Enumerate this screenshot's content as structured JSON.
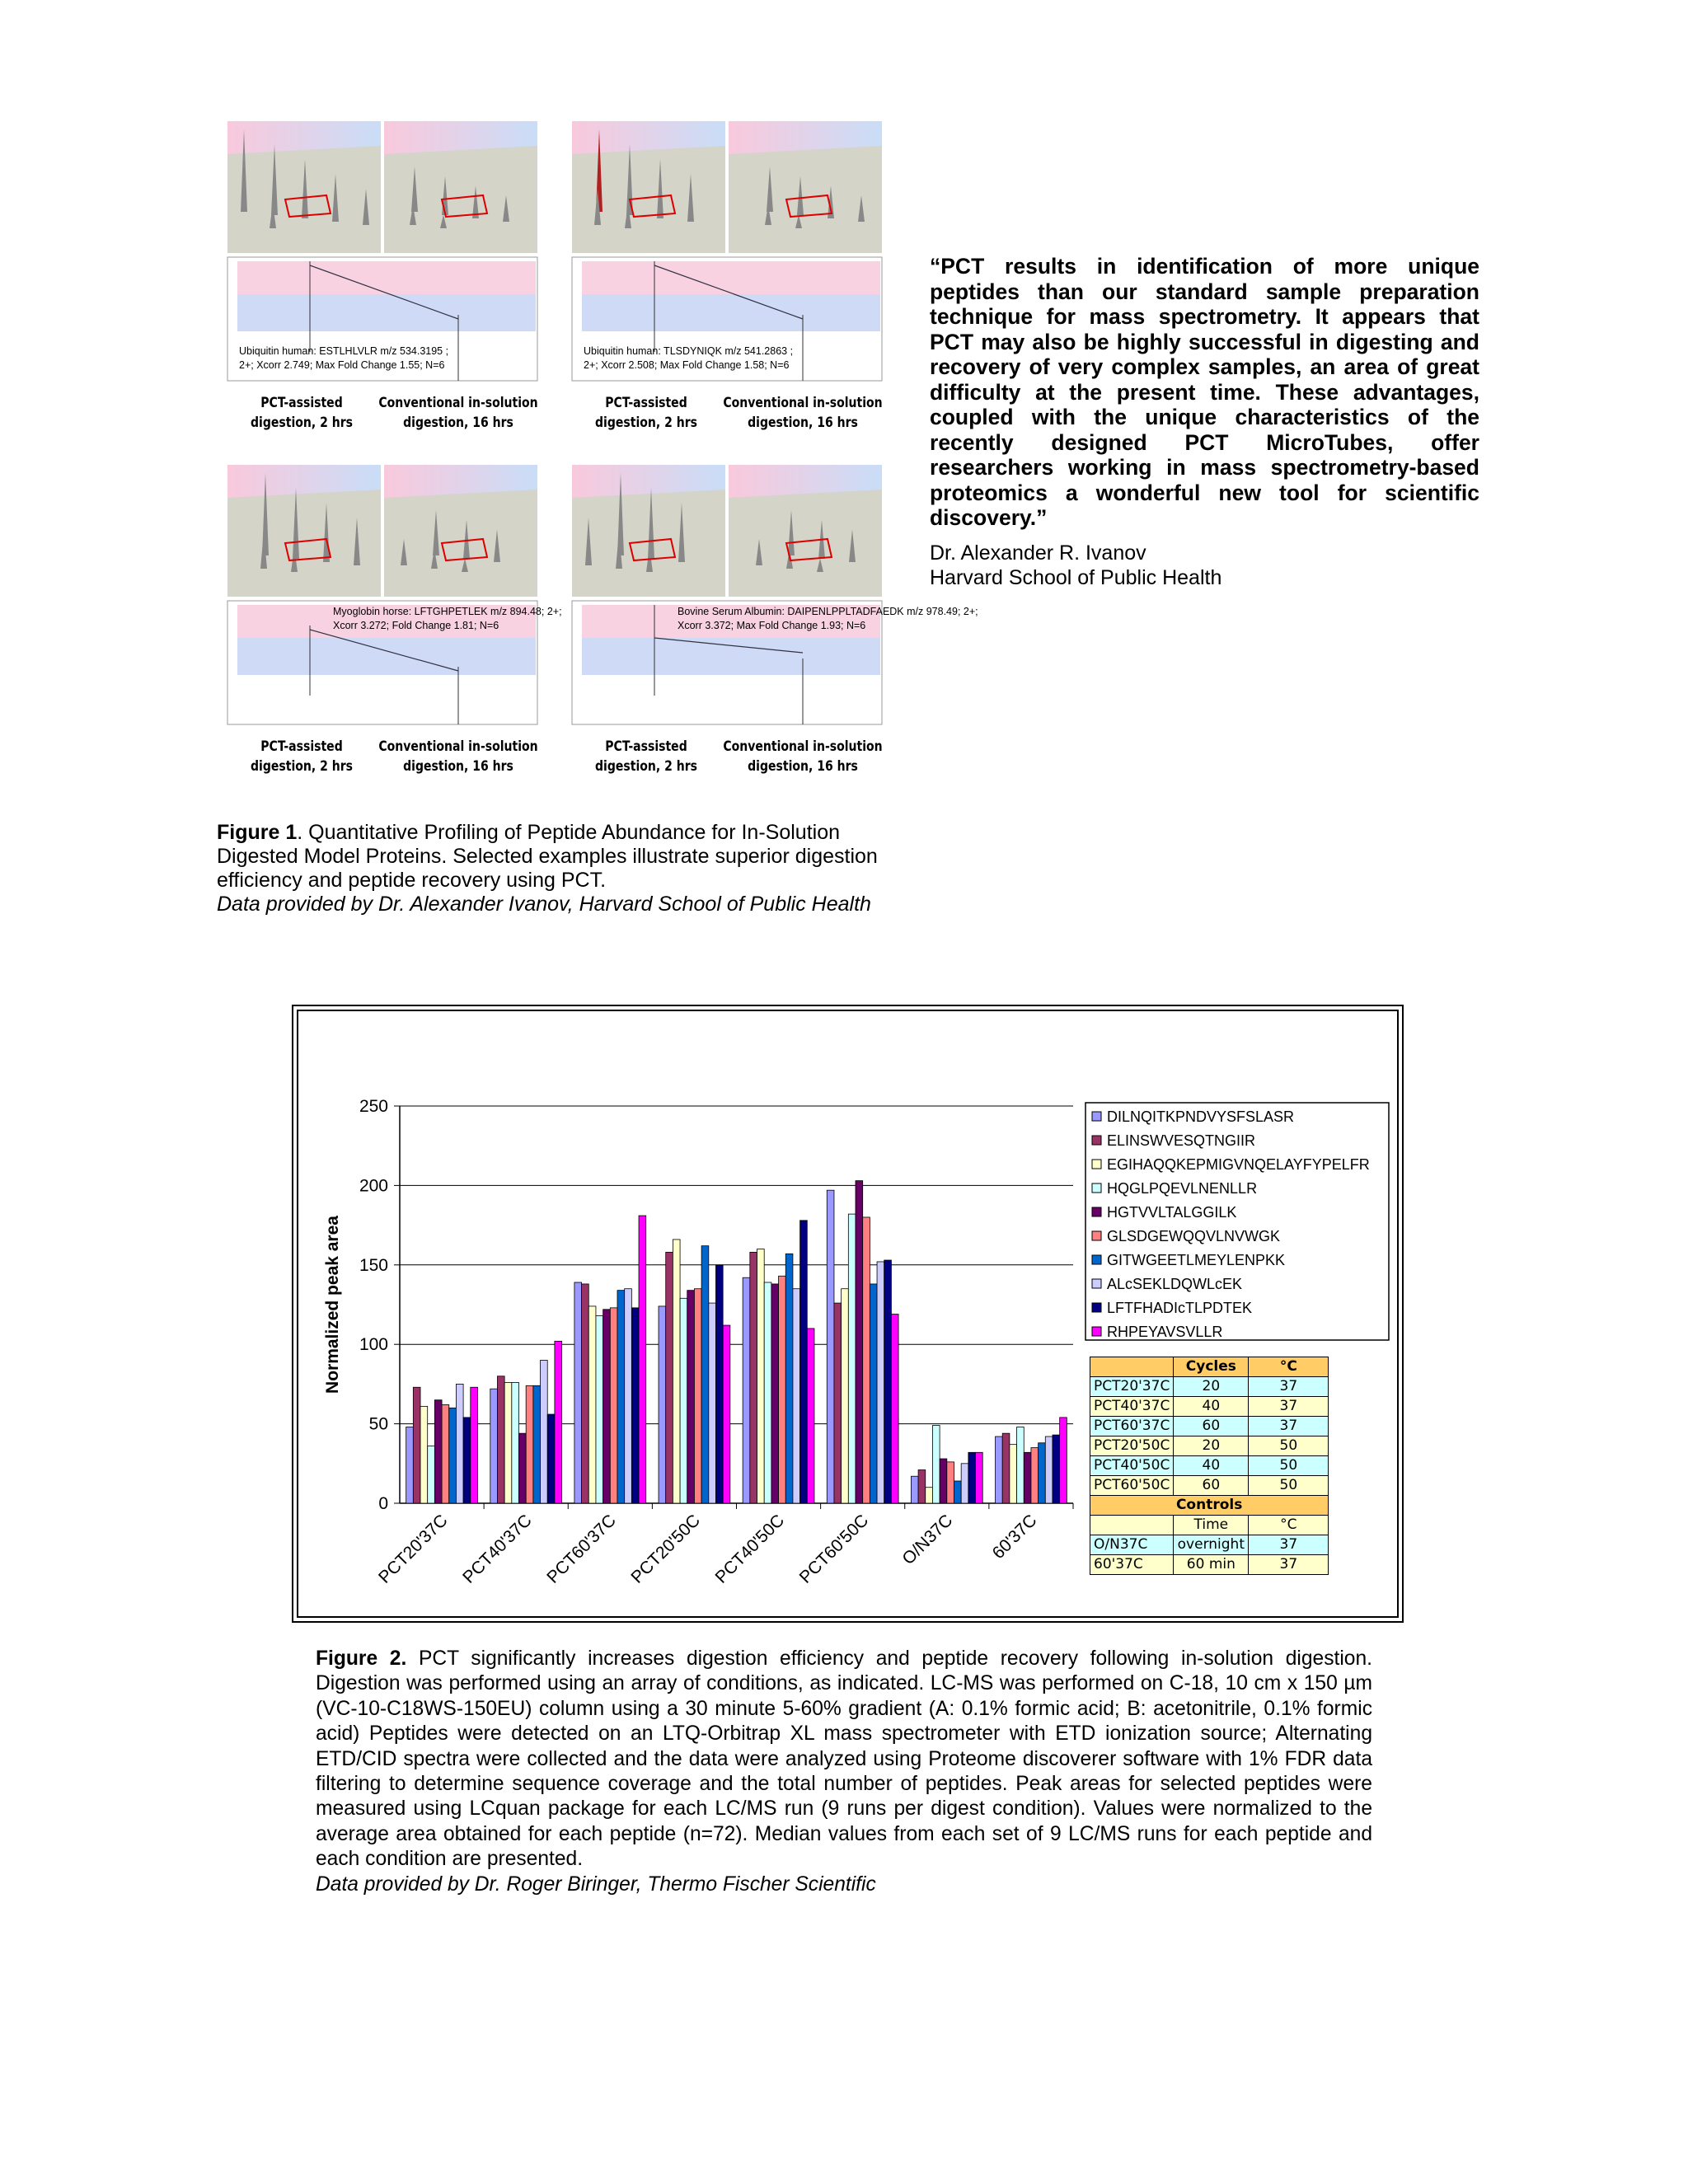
{
  "figure1": {
    "panels": [
      {
        "annotation": [
          "Ubiquitin human: ESTLHLVLR m/z 534.3195 ;",
          "2+; Xcorr 2.749; Max Fold Change 1.55; N=6"
        ],
        "left_label": [
          "PCT-assisted",
          "digestion, 2 hrs"
        ],
        "right_label": [
          "Conventional in-solution",
          "digestion, 16 hrs"
        ]
      },
      {
        "annotation": [
          "Ubiquitin human: TLSDYNIQK m/z 541.2863 ;",
          "2+; Xcorr 2.508; Max Fold Change 1.58; N=6"
        ],
        "left_label": [
          "PCT-assisted",
          "digestion, 2 hrs"
        ],
        "right_label": [
          "Conventional in-solution",
          "digestion, 16 hrs"
        ]
      },
      {
        "annotation": [
          "Myoglobin horse: LFTGHPETLEK m/z 894.48; 2+;",
          "Xcorr 3.272; Fold Change 1.81; N=6"
        ],
        "left_label": [
          "PCT-assisted",
          "digestion, 2 hrs"
        ],
        "right_label": [
          "Conventional in-solution",
          "digestion, 16 hrs"
        ]
      },
      {
        "annotation": [
          "Bovine Serum Albumin: DAIPENLPPLTADFAEDK m/z 978.49; 2+;",
          "Xcorr 3.372; Max Fold Change 1.93; N=6"
        ],
        "left_label": [
          "PCT-assisted",
          "digestion, 2 hrs"
        ],
        "right_label": [
          "Conventional in-solution",
          "digestion, 16 hrs"
        ]
      }
    ],
    "caption": {
      "label": "Figure 1",
      "text": ".  Quantitative Profiling of Peptide Abundance for In-Solution Digested Model Proteins.  Selected examples illustrate superior digestion efficiency and peptide recovery using PCT.",
      "credit": "Data provided by Dr. Alexander Ivanov, Harvard School of Public Health"
    }
  },
  "quote": {
    "text": "“PCT results in identification of more unique peptides than our standard sample preparation technique for mass spectrometry.  It appears that PCT may also be highly successful in digesting and recovery of very complex samples, an area of great difficulty at the present time.  These advantages, coupled with the unique characteristics of the recently designed PCT MicroTubes, offer researchers working in mass spectrometry-based proteomics a wonderful new tool for scientific discovery.”",
    "author": "Dr. Alexander R. Ivanov",
    "affiliation": "Harvard School of Public Health"
  },
  "chart_data": {
    "type": "bar",
    "y_label": "Normalized peak area",
    "categories": [
      "PCT20'37C",
      "PCT40'37C",
      "PCT60'37C",
      "PCT20'50C",
      "PCT40'50C",
      "PCT60'50C",
      "O/N37C",
      "60'37C"
    ],
    "ylim": [
      0,
      250
    ],
    "yticks": [
      0,
      50,
      100,
      150,
      200,
      250
    ],
    "grid": true,
    "legend": "right",
    "series": [
      {
        "name": "DILNQITKPNDVYSFSLASR",
        "color": "#9999ff",
        "values": [
          48,
          72,
          139,
          124,
          142,
          197,
          17,
          42
        ]
      },
      {
        "name": "ELINSWVESQTNGIIR",
        "color": "#993366",
        "values": [
          73,
          80,
          138,
          158,
          158,
          126,
          21,
          44
        ]
      },
      {
        "name": "EGIHAQQKEPMIGVNQELAYFYPELFR",
        "color": "#ffffcc",
        "values": [
          61,
          76,
          124,
          166,
          160,
          135,
          10,
          37
        ]
      },
      {
        "name": "HQGLPQEVLNENLLR",
        "color": "#ccffff",
        "values": [
          36,
          76,
          118,
          129,
          139,
          182,
          49,
          48
        ]
      },
      {
        "name": "HGTVVLTALGGILK",
        "color": "#660066",
        "values": [
          65,
          44,
          122,
          134,
          138,
          203,
          28,
          32
        ]
      },
      {
        "name": "GLSDGEWQQVLNVWGK",
        "color": "#ff8080",
        "values": [
          62,
          74,
          123,
          135,
          143,
          180,
          26,
          35
        ]
      },
      {
        "name": "GITWGEETLMEYLENPKK",
        "color": "#0066cc",
        "values": [
          60,
          74,
          134,
          162,
          157,
          138,
          14,
          38
        ]
      },
      {
        "name": "ALcSEKLDQWLcEK",
        "color": "#ccccff",
        "values": [
          75,
          90,
          135,
          126,
          135,
          152,
          25,
          42
        ]
      },
      {
        "name": "LFTFHADIcTLPDTEK",
        "color": "#000080",
        "values": [
          54,
          56,
          123,
          150,
          178,
          153,
          32,
          43
        ]
      },
      {
        "name": "RHPEYAVSVLLR",
        "color": "#ff00ff",
        "values": [
          73,
          102,
          181,
          112,
          110,
          119,
          32,
          54
        ]
      }
    ]
  },
  "conditions_table": {
    "header": [
      "Cycles",
      "°C"
    ],
    "rows": [
      [
        "PCT20'37C",
        20,
        37
      ],
      [
        "PCT40'37C",
        40,
        37
      ],
      [
        "PCT60'37C",
        60,
        37
      ],
      [
        "PCT20'50C",
        20,
        50
      ],
      [
        "PCT40'50C",
        40,
        50
      ],
      [
        "PCT60'50C",
        60,
        50
      ]
    ],
    "controls_title": "Controls",
    "controls_header": [
      "Time",
      "°C"
    ],
    "controls_rows": [
      [
        "O/N37C",
        "overnight",
        37
      ],
      [
        "60'37C",
        "60 min",
        37
      ]
    ]
  },
  "figure2": {
    "caption": {
      "label": "Figure 2.",
      "text": "PCT significantly increases digestion efficiency and peptide recovery following in-solution digestion. Digestion was performed using an array of conditions, as indicated. LC-MS was performed on C-18, 10 cm x 150 µm (VC-10-C18WS-150EU) column using a 30 minute 5-60% gradient (A: 0.1% formic acid; B: acetonitrile, 0.1% formic acid) Peptides were detected on an LTQ-Orbitrap XL mass spectrometer with ETD ionization source; Alternating ETD/CID spectra were collected and the data were analyzed using Proteome discoverer software with 1% FDR data filtering to determine sequence coverage and the total number of peptides. Peak areas for selected peptides were measured using LCquan package for each LC/MS run (9 runs per digest condition).  Values were normalized to the average area obtained for each peptide (n=72). Median values from each set of 9 LC/MS runs for each peptide and each condition are presented.",
      "credit": "Data provided by Dr. Roger Biringer, Thermo Fischer Scientific"
    }
  }
}
